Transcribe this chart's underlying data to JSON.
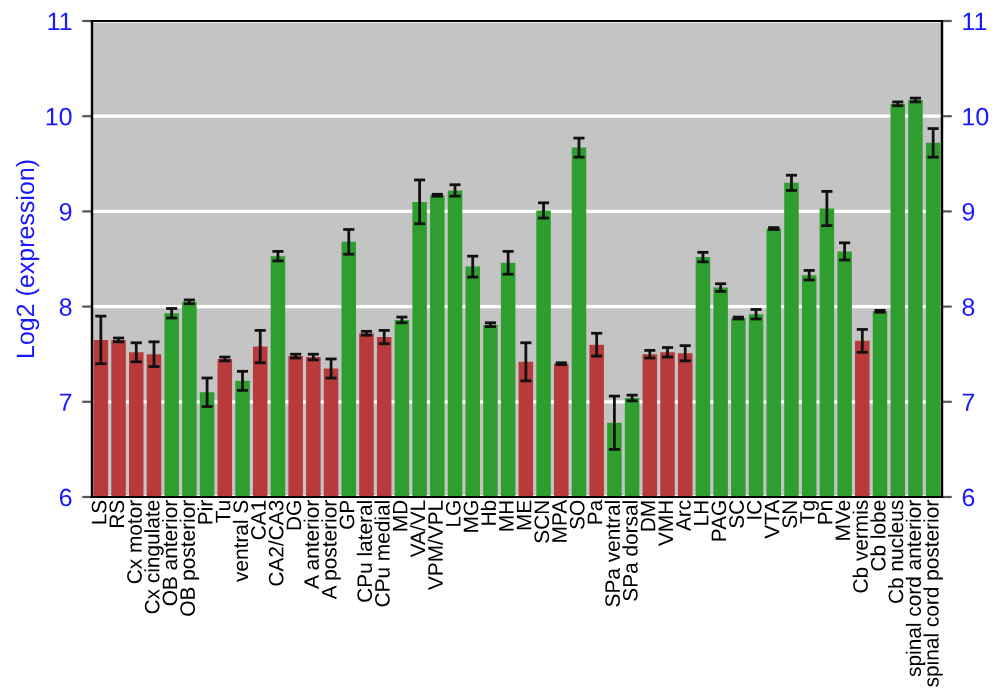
{
  "chart_data": {
    "type": "bar",
    "ylabel": "Log2 (expression)",
    "categories": [
      "LS",
      "RS",
      "Cx motor",
      "Cx cingulate",
      "OB anterior",
      "OB posterior",
      "Pir",
      "Tu",
      "ventral S",
      "CA1",
      "CA2/CA3",
      "DG",
      "A anterior",
      "A posterior",
      "GP",
      "CPu lateral",
      "CPu medial",
      "MD",
      "VA/VL",
      "VPM/VPL",
      "LG",
      "MG",
      "Hb",
      "MH",
      "ME",
      "SCN",
      "MPA",
      "SO",
      "Pa",
      "SPa ventral",
      "SPa dorsal",
      "DM",
      "VMH",
      "Arc",
      "LH",
      "PAG",
      "SC",
      "IC",
      "VTA",
      "SN",
      "Tg",
      "Pn",
      "MVe",
      "Cb vermis",
      "Cb lobe",
      "Cb nucleus",
      "spinal cord anterior",
      "spinal cord posterior"
    ],
    "values": [
      7.65,
      7.65,
      7.52,
      7.5,
      7.93,
      8.05,
      7.1,
      7.45,
      7.22,
      7.58,
      8.53,
      7.48,
      7.47,
      7.35,
      8.68,
      7.72,
      7.68,
      7.86,
      9.1,
      9.17,
      9.22,
      8.42,
      7.81,
      8.46,
      7.42,
      9.01,
      7.4,
      9.67,
      7.6,
      6.78,
      7.04,
      7.5,
      7.52,
      7.51,
      8.52,
      8.2,
      7.88,
      7.92,
      8.82,
      9.3,
      8.33,
      9.03,
      8.58,
      7.64,
      7.95,
      10.13,
      10.17,
      9.72
    ],
    "errors": [
      0.25,
      0.02,
      0.1,
      0.13,
      0.05,
      0.02,
      0.15,
      0.02,
      0.1,
      0.17,
      0.05,
      0.02,
      0.03,
      0.1,
      0.13,
      0.02,
      0.07,
      0.03,
      0.23,
      0.01,
      0.06,
      0.11,
      0.02,
      0.12,
      0.2,
      0.08,
      0.01,
      0.1,
      0.12,
      0.28,
      0.03,
      0.04,
      0.05,
      0.08,
      0.05,
      0.04,
      0.01,
      0.05,
      0.01,
      0.08,
      0.05,
      0.18,
      0.09,
      0.12,
      0.01,
      0.02,
      0.02,
      0.15
    ],
    "colors": [
      "#b83a3a",
      "#b83a3a",
      "#b83a3a",
      "#b83a3a",
      "#2e9e2e",
      "#2e9e2e",
      "#2e9e2e",
      "#b83a3a",
      "#2e9e2e",
      "#b83a3a",
      "#2e9e2e",
      "#b83a3a",
      "#b83a3a",
      "#b83a3a",
      "#2e9e2e",
      "#b83a3a",
      "#b83a3a",
      "#2e9e2e",
      "#2e9e2e",
      "#2e9e2e",
      "#2e9e2e",
      "#2e9e2e",
      "#2e9e2e",
      "#2e9e2e",
      "#b83a3a",
      "#2e9e2e",
      "#b83a3a",
      "#2e9e2e",
      "#b83a3a",
      "#2e9e2e",
      "#2e9e2e",
      "#b83a3a",
      "#b83a3a",
      "#b83a3a",
      "#2e9e2e",
      "#2e9e2e",
      "#2e9e2e",
      "#2e9e2e",
      "#2e9e2e",
      "#2e9e2e",
      "#2e9e2e",
      "#2e9e2e",
      "#2e9e2e",
      "#b83a3a",
      "#2e9e2e",
      "#2e9e2e",
      "#2e9e2e",
      "#2e9e2e"
    ],
    "ylim": [
      6,
      11
    ],
    "yticks": [
      6,
      7,
      8,
      9,
      10,
      11
    ],
    "y2lim": [
      6,
      11
    ],
    "y2ticks": [
      6,
      7,
      8,
      9,
      10,
      11
    ],
    "grid": "y"
  }
}
